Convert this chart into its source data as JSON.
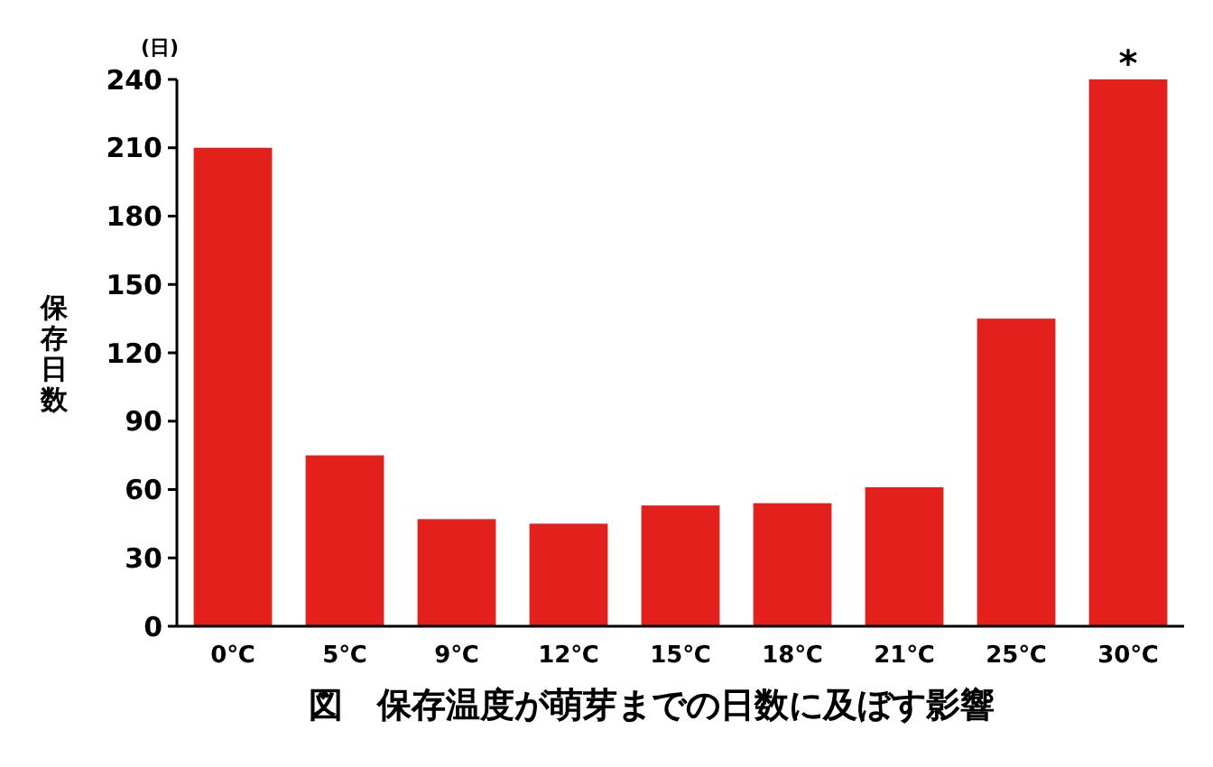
{
  "chart_data": {
    "type": "bar",
    "title": "図　保存温度が萌芽までの日数に及ぼす影響",
    "ylabel": "保存日数",
    "categories": [
      "0℃",
      "5℃",
      "9℃",
      "12℃",
      "15℃",
      "18℃",
      "21℃",
      "25℃",
      "30℃"
    ],
    "values": [
      210,
      75,
      47,
      45,
      53,
      54,
      61,
      135,
      240
    ],
    "color": "#e3201b",
    "ylim": [
      0,
      240
    ],
    "yticks": [
      0,
      30,
      60,
      90,
      120,
      150,
      180,
      210,
      240
    ],
    "grid": false,
    "annotations": [
      "(日)",
      {
        "text": "*",
        "x": "30℃",
        "y": 240
      }
    ]
  }
}
